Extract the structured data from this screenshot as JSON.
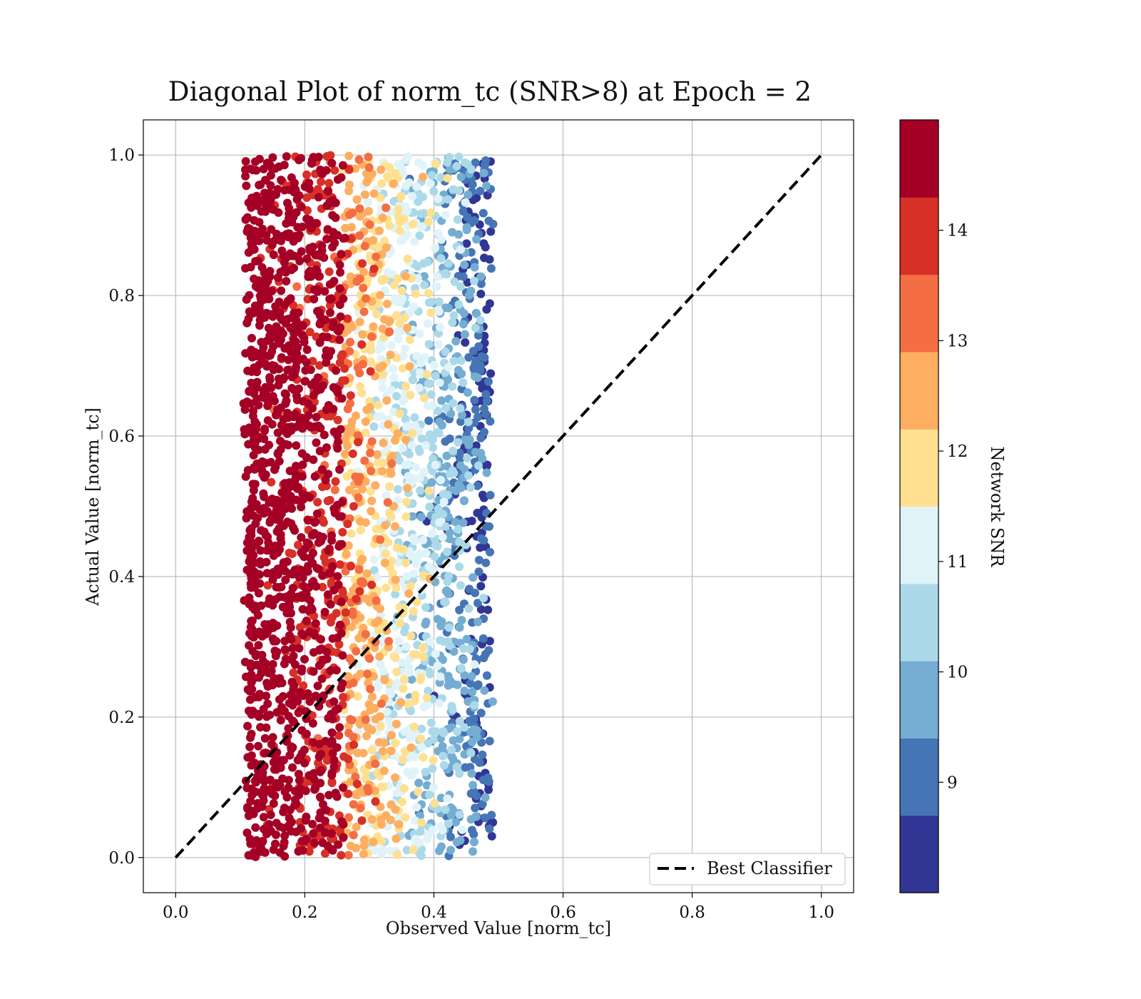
{
  "chart_data": {
    "type": "scatter",
    "title": "Diagonal Plot of norm_tc (SNR>8) at Epoch = 2",
    "xlabel": "Observed Value [norm_tc]",
    "ylabel": "Actual Value [norm_tc]",
    "xlim": [
      -0.05,
      1.05
    ],
    "ylim": [
      -0.05,
      1.05
    ],
    "xticks": [
      0.0,
      0.2,
      0.4,
      0.6,
      0.8,
      1.0
    ],
    "yticks": [
      0.0,
      0.2,
      0.4,
      0.6,
      0.8,
      1.0
    ],
    "xtick_labels": [
      "0.0",
      "0.2",
      "0.4",
      "0.6",
      "0.8",
      "1.0"
    ],
    "ytick_labels": [
      "0.0",
      "0.2",
      "0.4",
      "0.6",
      "0.8",
      "1.0"
    ],
    "grid": true,
    "scatter_cloud": {
      "x_range": [
        0.11,
        0.5
      ],
      "y_range": [
        0.0,
        1.0
      ],
      "color_trend": "SNR decreases as observed value increases; dense high-SNR (>14) cluster near x=0.12-0.26, low-SNR (<10) points near x=0.45-0.49"
    },
    "reference_line": {
      "label": "Best Classifier",
      "x": [
        0.0,
        1.0
      ],
      "y": [
        0.0,
        1.0
      ],
      "style": "dashed",
      "color": "#000000"
    },
    "legend": {
      "entries": [
        "Best Classifier"
      ],
      "placement": "lower-right"
    },
    "colorbar": {
      "label": "Network SNR",
      "range": [
        8,
        15
      ],
      "boundaries": [
        8,
        8.7,
        9.4,
        10.1,
        10.8,
        11.5,
        12.2,
        12.9,
        13.6,
        14.3,
        15
      ],
      "colors": [
        "#313695",
        "#4575b4",
        "#74add1",
        "#abd9e9",
        "#e0f3f8",
        "#fee090",
        "#fdae61",
        "#f46d43",
        "#d73027",
        "#a50026"
      ],
      "ticks": [
        9,
        10,
        11,
        12,
        13,
        14
      ],
      "tick_labels": [
        "9",
        "10",
        "11",
        "12",
        "13",
        "14"
      ]
    }
  }
}
